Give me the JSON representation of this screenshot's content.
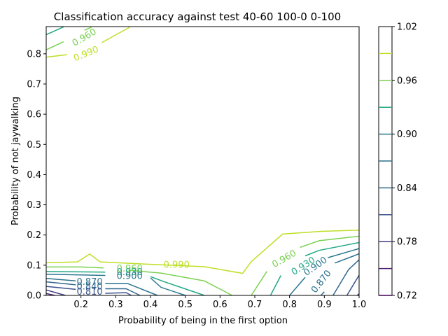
{
  "chart_data": {
    "type": "contour",
    "title": "Classification accuracy against test 40-60 100-0 0-100",
    "xlabel": "Probability of being in the first option",
    "ylabel": "Probability of not jaywalking",
    "xlim": [
      0.1,
      1.0
    ],
    "ylim": [
      0.0,
      0.89
    ],
    "x_ticks": [
      "0.2",
      "0.3",
      "0.4",
      "0.5",
      "0.6",
      "0.7",
      "0.8",
      "0.9",
      "1.0"
    ],
    "y_ticks": [
      "0.0",
      "0.1",
      "0.2",
      "0.3",
      "0.4",
      "0.5",
      "0.6",
      "0.7",
      "0.8"
    ],
    "colorbar": {
      "min": 0.72,
      "max": 1.02,
      "levels": [
        0.72,
        0.75,
        0.78,
        0.81,
        0.84,
        0.87,
        0.9,
        0.93,
        0.96,
        0.99
      ],
      "tick_labels": [
        "1.02",
        "0.96",
        "0.90",
        "0.84",
        "0.78",
        "0.72"
      ],
      "tick_values": [
        1.02,
        0.96,
        0.9,
        0.84,
        0.78,
        0.72
      ]
    },
    "series": [
      {
        "level": 0.99,
        "color": "#bddf26",
        "segments": [
          [
            [
              0.1,
              0.108
            ],
            [
              0.19,
              0.111
            ],
            [
              0.225,
              0.137
            ],
            [
              0.255,
              0.111
            ],
            [
              0.4,
              0.103
            ],
            [
              0.555,
              0.095
            ],
            [
              0.665,
              0.073
            ],
            [
              0.69,
              0.112
            ],
            [
              0.78,
              0.203
            ],
            [
              0.89,
              0.212
            ],
            [
              1.0,
              0.216
            ]
          ],
          [
            [
              0.1,
              0.789
            ],
            [
              0.16,
              0.797
            ]
          ],
          [
            [
              0.26,
              0.837
            ],
            [
              0.34,
              0.888
            ]
          ]
        ],
        "labels": [
          {
            "x": 0.215,
            "y": 0.799,
            "text": "0.990",
            "rot": -22
          },
          {
            "x": 0.475,
            "y": 0.1,
            "text": "0.990",
            "rot": 0
          }
        ]
      },
      {
        "level": 0.96,
        "color": "#7ad151",
        "segments": [
          [
            [
              0.1,
              0.094
            ],
            [
              0.2,
              0.094
            ],
            [
              0.265,
              0.091
            ]
          ],
          [
            [
              0.34,
              0.083
            ],
            [
              0.43,
              0.074
            ],
            [
              0.555,
              0.048
            ],
            [
              0.635,
              0.0
            ]
          ],
          [
            [
              0.69,
              0.0
            ],
            [
              0.735,
              0.08
            ]
          ],
          [
            [
              0.83,
              0.159
            ],
            [
              0.885,
              0.181
            ],
            [
              1.0,
              0.196
            ]
          ],
          [
            [
              0.1,
              0.813
            ],
            [
              0.15,
              0.84
            ]
          ],
          [
            [
              0.21,
              0.878
            ],
            [
              0.23,
              0.888
            ]
          ]
        ],
        "labels": [
          {
            "x": 0.785,
            "y": 0.12,
            "text": "0.960",
            "rot": -30
          },
          {
            "x": 0.34,
            "y": 0.087,
            "text": "0.960",
            "rot": 0
          },
          {
            "x": 0.21,
            "y": 0.853,
            "text": "0.960",
            "rot": -30
          }
        ]
      },
      {
        "level": 0.93,
        "color": "#22a884",
        "segments": [
          [
            [
              0.1,
              0.079
            ],
            [
              0.27,
              0.077
            ]
          ],
          [
            [
              0.4,
              0.062
            ],
            [
              0.44,
              0.045
            ],
            [
              0.555,
              0.0
            ]
          ],
          [
            [
              0.745,
              0.0
            ],
            [
              0.775,
              0.066
            ]
          ],
          [
            [
              0.845,
              0.131
            ],
            [
              0.885,
              0.149
            ],
            [
              1.0,
              0.175
            ]
          ],
          [
            [
              0.1,
              0.863
            ],
            [
              0.15,
              0.889
            ]
          ]
        ],
        "labels": [
          {
            "x": 0.84,
            "y": 0.096,
            "text": "0.930",
            "rot": -32
          },
          {
            "x": 0.34,
            "y": 0.075,
            "text": "0.930",
            "rot": 0
          }
        ]
      },
      {
        "level": 0.9,
        "color": "#2a788e",
        "segments": [
          [
            [
              0.1,
              0.07
            ],
            [
              0.27,
              0.066
            ]
          ],
          [
            [
              0.4,
              0.058
            ],
            [
              0.43,
              0.027
            ],
            [
              0.5,
              0.0
            ]
          ],
          [
            [
              0.8,
              0.0
            ],
            [
              0.845,
              0.06
            ]
          ],
          [
            [
              0.91,
              0.125
            ],
            [
              1.0,
              0.155
            ]
          ]
        ],
        "labels": [
          {
            "x": 0.875,
            "y": 0.095,
            "text": "0.900",
            "rot": -35
          },
          {
            "x": 0.34,
            "y": 0.063,
            "text": "0.900",
            "rot": 0
          }
        ]
      },
      {
        "level": 0.87,
        "color": "#2c728e",
        "segments": [
          [
            [
              0.1,
              0.056
            ],
            [
              0.185,
              0.048
            ]
          ],
          [
            [
              0.27,
              0.039
            ],
            [
              0.335,
              0.039
            ],
            [
              0.42,
              0.0
            ]
          ],
          [
            [
              0.89,
              0.0
            ],
            [
              0.9,
              0.012
            ]
          ],
          [
            [
              0.93,
              0.107
            ],
            [
              0.985,
              0.131
            ],
            [
              1.0,
              0.138
            ]
          ]
        ],
        "labels": [
          {
            "x": 0.892,
            "y": 0.045,
            "text": "0.870",
            "rot": -52
          },
          {
            "x": 0.225,
            "y": 0.043,
            "text": "0.870",
            "rot": 0
          }
        ]
      },
      {
        "level": 0.84,
        "color": "#31688e",
        "segments": [
          [
            [
              0.1,
              0.045
            ],
            [
              0.185,
              0.035
            ]
          ],
          [
            [
              0.27,
              0.022
            ],
            [
              0.33,
              0.022
            ],
            [
              0.37,
              0.0
            ]
          ],
          [
            [
              0.925,
              0.0
            ],
            [
              0.97,
              0.086
            ],
            [
              1.0,
              0.118
            ]
          ]
        ],
        "labels": [
          {
            "x": 0.225,
            "y": 0.028,
            "text": "0.840",
            "rot": 0
          }
        ]
      },
      {
        "level": 0.81,
        "color": "#3b528b",
        "segments": [
          [
            [
              0.1,
              0.03
            ],
            [
              0.185,
              0.02
            ]
          ],
          [
            [
              0.27,
              0.007
            ],
            [
              0.33,
              0.009
            ],
            [
              0.345,
              0.0
            ]
          ],
          [
            [
              0.965,
              0.0
            ],
            [
              1.0,
              0.067
            ]
          ]
        ],
        "labels": [
          {
            "x": 0.225,
            "y": 0.011,
            "text": "0.810",
            "rot": 0
          }
        ]
      },
      {
        "level": 0.78,
        "color": "#443a83",
        "segments": [
          [
            [
              0.1,
              0.018
            ],
            [
              0.155,
              0.0
            ]
          ]
        ],
        "labels": []
      },
      {
        "level": 0.75,
        "color": "#481d6f",
        "segments": [
          [
            [
              0.1,
              0.006
            ],
            [
              0.125,
              0.0
            ]
          ],
          [
            [
              0.995,
              0.0
            ],
            [
              1.0,
              0.005
            ]
          ]
        ],
        "labels": []
      }
    ]
  }
}
